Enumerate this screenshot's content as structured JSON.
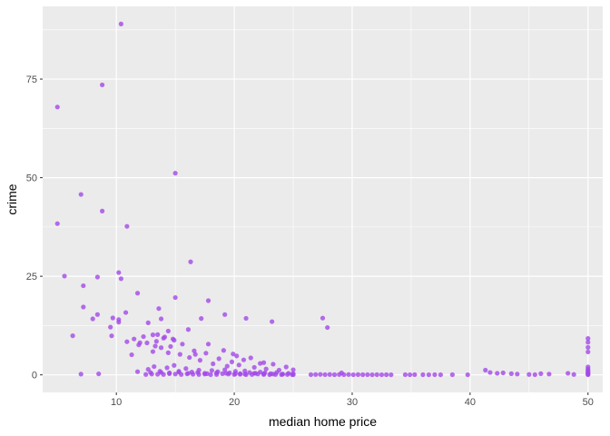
{
  "chart_data": {
    "type": "scatter",
    "title": "",
    "xlabel": "median home price",
    "ylabel": "crime",
    "xlim": [
      3.75,
      51.25
    ],
    "ylim": [
      -4.449,
      93.441
    ],
    "x_ticks": [
      10,
      20,
      30,
      40,
      50
    ],
    "x_minor_ticks": [
      15,
      25,
      35,
      45
    ],
    "y_ticks": [
      0,
      25,
      50,
      75
    ],
    "y_minor_ticks": [
      12.5,
      37.5,
      62.5,
      87.5
    ],
    "x_tick_labels": [
      "10",
      "20",
      "30",
      "40",
      "50"
    ],
    "y_tick_labels": [
      "0",
      "25",
      "50",
      "75"
    ],
    "grid": true,
    "panel_background": "#ebebeb",
    "grid_color": "#ffffff",
    "point_color": "#a349e8",
    "x": [
      10.4,
      8.8,
      5.0,
      8.8,
      15.0,
      7.0,
      8.4,
      5.0,
      10.9,
      16.3,
      5.6,
      10.2,
      10.4,
      6.3,
      7.0,
      8.5,
      13.1,
      14.4,
      11.8,
      12.0,
      13.6,
      15.0,
      17.8,
      19.2,
      21.0,
      7.2,
      9.7,
      10.2,
      10.8,
      11.5,
      12.7,
      13.4,
      13.8,
      14.1,
      14.6,
      14.9,
      16.1,
      16.7,
      17.2,
      17.8,
      19.1,
      19.9,
      20.2,
      21.4,
      22.5,
      23.2,
      27.5,
      27.9,
      7.2,
      8.0,
      8.4,
      9.5,
      9.6,
      10.2,
      10.9,
      11.3,
      11.9,
      12.3,
      12.6,
      13.1,
      13.3,
      13.5,
      13.8,
      14.0,
      14.4,
      14.8,
      15.4,
      15.6,
      16.2,
      16.6,
      17.1,
      17.6,
      18.2,
      18.7,
      19.4,
      19.8,
      20.4,
      20.8,
      21.7,
      22.2,
      22.7,
      23.3,
      23.8,
      24.4,
      25.0,
      29.1,
      11.8,
      12.7,
      13.2,
      13.8,
      14.3,
      14.9,
      15.3,
      15.9,
      16.4,
      17.0,
      17.5,
      18.1,
      18.6,
      19.2,
      19.6,
      20.1,
      20.5,
      20.9,
      21.3,
      21.8,
      22.2,
      22.6,
      23.1,
      23.6,
      24.1,
      24.6,
      25.0,
      12.5,
      13.0,
      13.5,
      14.0,
      14.5,
      15.0,
      15.5,
      16.0,
      16.5,
      17.0,
      17.5,
      18.0,
      18.5,
      19.0,
      19.5,
      20.0,
      20.5,
      21.0,
      21.5,
      22.0,
      22.5,
      23.0,
      23.5,
      24.0,
      24.5,
      25.0,
      12.9,
      13.7,
      14.5,
      15.3,
      16.1,
      16.9,
      17.7,
      18.5,
      19.3,
      20.1,
      20.9,
      21.7,
      22.5,
      23.3,
      24.1,
      24.9,
      26.5,
      26.9,
      27.3,
      27.7,
      28.1,
      28.5,
      28.9,
      29.3,
      29.7,
      30.1,
      30.5,
      30.9,
      31.3,
      31.7,
      32.1,
      32.5,
      32.9,
      33.3,
      34.5,
      34.9,
      35.3,
      36.0,
      36.5,
      37.0,
      37.5,
      38.5,
      39.8,
      41.3,
      41.7,
      42.3,
      42.8,
      43.5,
      44.0,
      45.0,
      45.5,
      46.0,
      46.7,
      48.3,
      48.8,
      50.0,
      50.0,
      50.0,
      50.0,
      50.0,
      50.0,
      50.0,
      50.0,
      50.0,
      50.0,
      50.0,
      50.0
    ],
    "y": [
      88.98,
      73.53,
      67.92,
      41.53,
      51.14,
      45.75,
      24.8,
      38.35,
      37.66,
      28.66,
      25.05,
      25.94,
      24.39,
      9.92,
      0.18,
      0.25,
      10.15,
      11.11,
      20.72,
      8.15,
      16.81,
      19.61,
      18.81,
      15.29,
      14.33,
      22.6,
      14.44,
      13.36,
      15.8,
      9.1,
      13.2,
      8.5,
      14.2,
      9.6,
      7.2,
      8.8,
      11.5,
      5.2,
      14.3,
      7.8,
      6.2,
      5.3,
      4.8,
      4.3,
      3.1,
      13.5,
      14.4,
      12.0,
      17.2,
      14.2,
      15.3,
      12.1,
      9.9,
      14.0,
      8.4,
      5.1,
      7.6,
      9.7,
      8.1,
      5.9,
      7.3,
      10.2,
      6.9,
      9.3,
      5.6,
      9.1,
      5.2,
      7.8,
      4.4,
      6.1,
      3.7,
      5.5,
      2.8,
      4.1,
      2.2,
      3.3,
      2.5,
      3.8,
      1.9,
      2.9,
      1.5,
      2.7,
      1.2,
      2.0,
      1.3,
      0.5,
      0.8,
      1.4,
      2.1,
      0.6,
      1.8,
      2.4,
      0.9,
      1.6,
      0.7,
      1.2,
      0.4,
      1.1,
      0.8,
      1.3,
      0.5,
      0.9,
      0.3,
      1.0,
      0.6,
      0.4,
      0.7,
      0.5,
      0.3,
      0.6,
      0.2,
      0.4,
      0.3,
      0.1,
      0.2,
      0.15,
      0.1,
      0.3,
      0.2,
      0.1,
      0.25,
      0.15,
      0.1,
      0.2,
      0.05,
      0.1,
      0.3,
      0.2,
      0.1,
      0.15,
      0.05,
      0.1,
      0.2,
      0.08,
      0.05,
      0.1,
      0.07,
      0.1,
      0.02,
      0.6,
      0.9,
      0.5,
      0.7,
      0.4,
      0.6,
      0.3,
      0.5,
      0.4,
      0.3,
      0.2,
      0.4,
      0.25,
      0.2,
      0.15,
      0.1,
      0.05,
      0.08,
      0.12,
      0.06,
      0.1,
      0.04,
      0.09,
      0.05,
      0.08,
      0.03,
      0.07,
      0.04,
      0.06,
      0.02,
      0.05,
      0.03,
      0.04,
      0.02,
      0.05,
      0.03,
      0.06,
      0.04,
      0.03,
      0.05,
      0.02,
      0.04,
      0.03,
      1.2,
      0.6,
      0.4,
      0.5,
      0.3,
      0.2,
      0.1,
      0.05,
      0.3,
      0.2,
      0.4,
      0.1,
      9.23,
      8.27,
      6.96,
      5.82,
      2.01,
      1.5,
      0.8,
      0.5,
      0.3,
      0.1,
      0.05,
      1.1
    ]
  }
}
